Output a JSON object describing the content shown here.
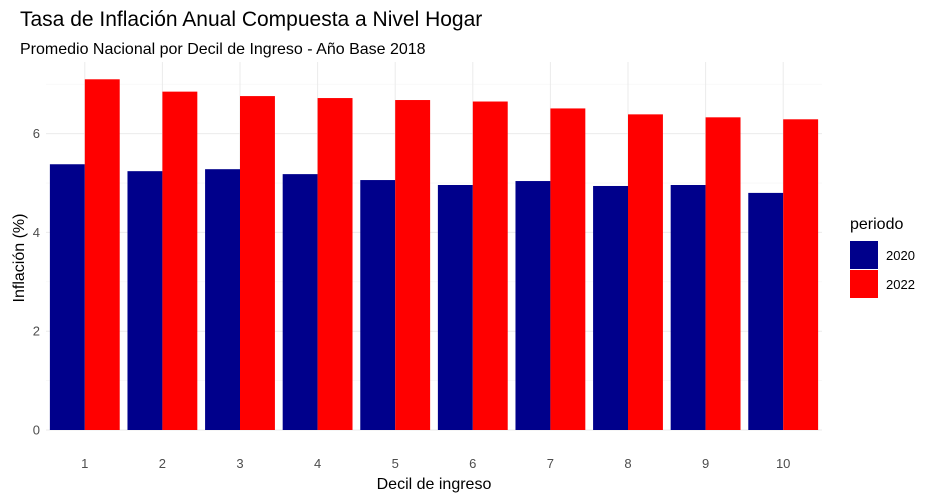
{
  "chart_data": {
    "type": "bar",
    "title": "Tasa de Inflación Anual Compuesta a Nivel Hogar",
    "subtitle": "Promedio Nacional por Decil de Ingreso - Año Base 2018",
    "xlabel": "Decil de ingreso",
    "ylabel": "Inflación (%)",
    "categories": [
      "1",
      "2",
      "3",
      "4",
      "5",
      "6",
      "7",
      "8",
      "9",
      "10"
    ],
    "yticks": [
      "0",
      "2",
      "4",
      "6"
    ],
    "ylim": [
      0,
      7.45
    ],
    "grid": true,
    "legend": {
      "title": "periodo",
      "placement": "right"
    },
    "series": [
      {
        "name": "2020",
        "color": "#00008b",
        "values": [
          5.38,
          5.24,
          5.28,
          5.18,
          5.06,
          4.96,
          5.04,
          4.94,
          4.96,
          4.8
        ]
      },
      {
        "name": "2022",
        "color": "#ff0000",
        "values": [
          7.1,
          6.85,
          6.76,
          6.72,
          6.68,
          6.65,
          6.51,
          6.39,
          6.33,
          6.29
        ]
      }
    ]
  }
}
